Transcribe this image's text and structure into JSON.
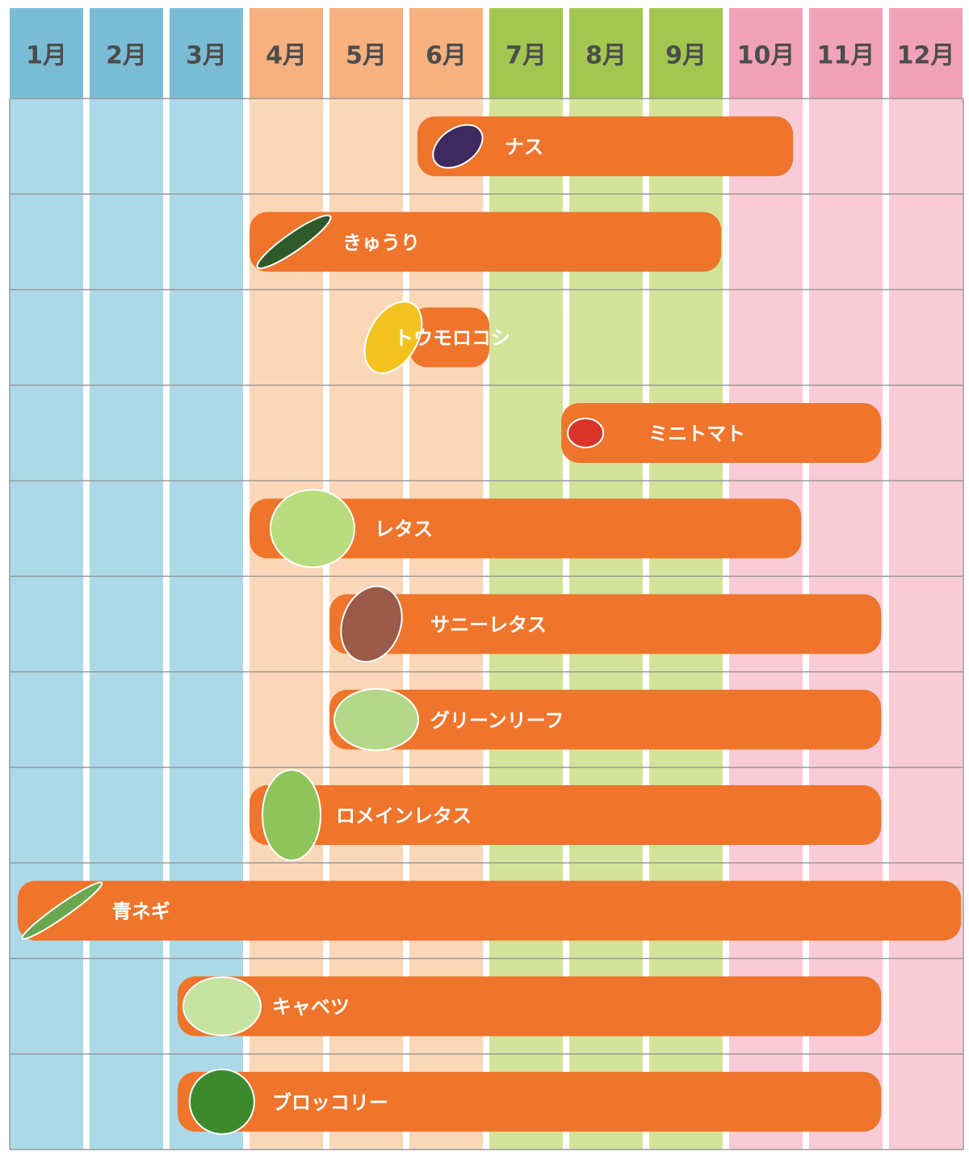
{
  "chart_data": {
    "type": "gantt",
    "months": [
      "1月",
      "2月",
      "3月",
      "4月",
      "5月",
      "6月",
      "7月",
      "8月",
      "9月",
      "10月",
      "11月",
      "12月"
    ],
    "header_colors": [
      "#7bbcd5",
      "#7bbcd5",
      "#7bbcd5",
      "#f6b17f",
      "#f6b17f",
      "#f6b17f",
      "#a3c650",
      "#a3c650",
      "#a3c650",
      "#f0a2b8",
      "#f0a2b8",
      "#f0a2b8"
    ],
    "column_colors": [
      "#acd9e8",
      "#acd9e8",
      "#acd9e8",
      "#fbd7b9",
      "#fbd7b9",
      "#fbd7b9",
      "#d3e49a",
      "#d3e49a",
      "#d3e49a",
      "#f8cbd7",
      "#f8cbd7",
      "#f8cbd7"
    ],
    "xlim": [
      0,
      12
    ],
    "bar_color": "#ee752b",
    "tasks": [
      {
        "label": "ナス",
        "start": 5.1,
        "end": 9.8
      },
      {
        "label": "きゅうり",
        "start": 3.0,
        "end": 8.9
      },
      {
        "label": "トウモロコシ",
        "start": 5.0,
        "end": 6.0
      },
      {
        "label": "ミニトマト",
        "start": 6.9,
        "end": 10.9
      },
      {
        "label": "レタス",
        "start": 3.0,
        "end": 9.9
      },
      {
        "label": "サニーレタス",
        "start": 4.0,
        "end": 10.9
      },
      {
        "label": "グリーンリーフ",
        "start": 4.0,
        "end": 10.9
      },
      {
        "label": "ロメインレタス",
        "start": 3.0,
        "end": 10.9
      },
      {
        "label": "青ネギ",
        "start": 0.1,
        "end": 11.9
      },
      {
        "label": "キャベツ",
        "start": 2.1,
        "end": 10.9
      },
      {
        "label": "ブロッコリー",
        "start": 2.1,
        "end": 10.9
      }
    ]
  }
}
